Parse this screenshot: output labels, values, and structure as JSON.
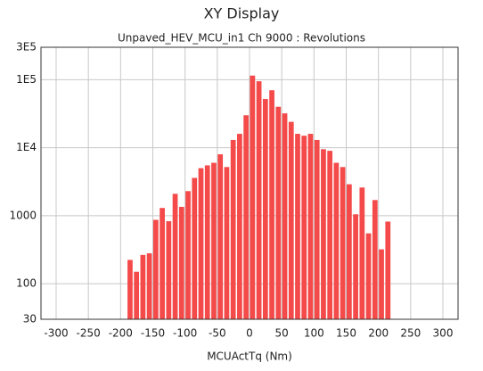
{
  "chart_data": {
    "type": "histogram",
    "title": "XY Display",
    "subtitle": "Unpaved_HEV_MCU_in1  Ch 9000 : Revolutions",
    "x_label": "MCUActTq (Nm)",
    "bins": [
      -190,
      -180,
      -170,
      -160,
      -150,
      -140,
      -130,
      -120,
      -110,
      -100,
      -90,
      -80,
      -70,
      -60,
      -50,
      -40,
      -30,
      -20,
      -10,
      0,
      10,
      20,
      30,
      40,
      50,
      60,
      70,
      80,
      90,
      100,
      110,
      120,
      130,
      140,
      150,
      160,
      170,
      180,
      190,
      200,
      210,
      220
    ],
    "values": [
      224,
      150,
      265,
      280,
      870,
      1300,
      830,
      2100,
      1350,
      2300,
      3600,
      5000,
      5500,
      6000,
      8000,
      5200,
      13000,
      16000,
      30000,
      115000,
      95000,
      52000,
      70000,
      40000,
      32000,
      24000,
      16000,
      15000,
      16000,
      13000,
      9500,
      9000,
      6000,
      5200,
      2900,
      1050,
      2600,
      550,
      1700,
      320,
      820
    ],
    "color": "#f44a4a",
    "xlim": [
      -323.5,
      323.5
    ],
    "xticks": [
      -300,
      -250,
      -200,
      -150,
      -100,
      -50,
      0,
      50,
      100,
      150,
      200,
      250,
      300
    ],
    "ylim": [
      30,
      300000
    ],
    "log_y": true,
    "yticks": [
      30,
      100,
      1000,
      {
        "value": 10000,
        "label": "1E4"
      },
      {
        "value": 100000,
        "label": "1E5"
      },
      {
        "value": 300000,
        "label": "3E5"
      }
    ],
    "grid": true
  }
}
